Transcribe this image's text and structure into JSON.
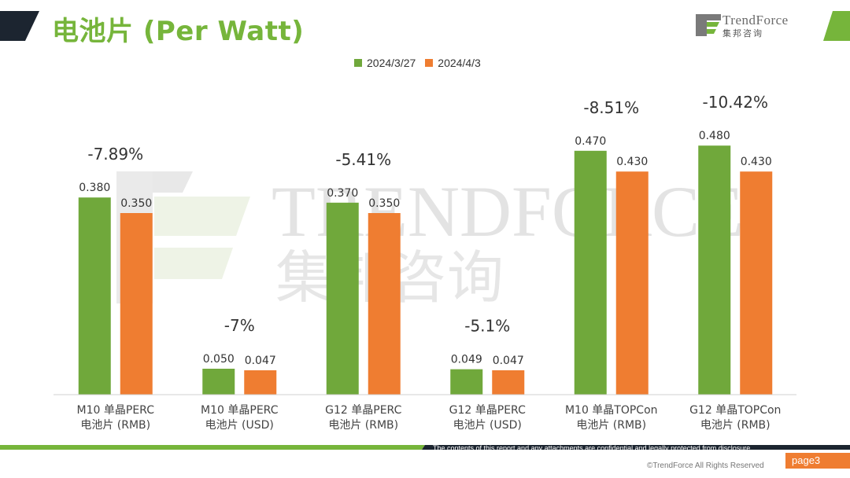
{
  "header": {
    "title": "电池片 (Per Watt)",
    "brand": "TrendForce",
    "brand_cn": "集邦咨询"
  },
  "watermark": {
    "text_en": "TRENDFORCE",
    "text_cn": "集邦咨询"
  },
  "colors": {
    "green": "#70a83b",
    "orange": "#ef7d31",
    "title_green": "#76b53b",
    "navy": "#1c2530"
  },
  "chart_data": {
    "type": "bar",
    "title": "",
    "xlabel": "",
    "ylabel": "",
    "categories": [
      [
        "M10 单晶PERC",
        "电池片 (RMB)"
      ],
      [
        "M10 单晶PERC",
        "电池片 (USD)"
      ],
      [
        "G12 单晶PERC",
        "电池片 (RMB)"
      ],
      [
        "G12 单晶PERC",
        "电池片 (USD)"
      ],
      [
        "M10 单晶TOPCon",
        "电池片 (RMB)"
      ],
      [
        "G12 单晶TOPCon",
        "电池片 (RMB)"
      ]
    ],
    "series": [
      {
        "name": "2024/3/27",
        "color": "#70a83b",
        "values": [
          0.38,
          0.05,
          0.37,
          0.049,
          0.47,
          0.48
        ],
        "labels": [
          "0.380",
          "0.050",
          "0.370",
          "0.049",
          "0.470",
          "0.480"
        ]
      },
      {
        "name": "2024/4/3",
        "color": "#ef7d31",
        "values": [
          0.35,
          0.047,
          0.35,
          0.047,
          0.43,
          0.43
        ],
        "labels": [
          "0.350",
          "0.047",
          "0.350",
          "0.047",
          "0.430",
          "0.430"
        ]
      }
    ],
    "changes": [
      "-7.89%",
      "-7%",
      "-5.41%",
      "-5.1%",
      "-8.51%",
      "-10.42%"
    ],
    "legend_position": "top-center",
    "grid": false
  },
  "footer": {
    "confidential_note": "The contents of this report and any attachments are confidential and legally protected from disclosure.",
    "page_label": "page3",
    "copyright": "©TrendForce All Rights Reserved"
  }
}
